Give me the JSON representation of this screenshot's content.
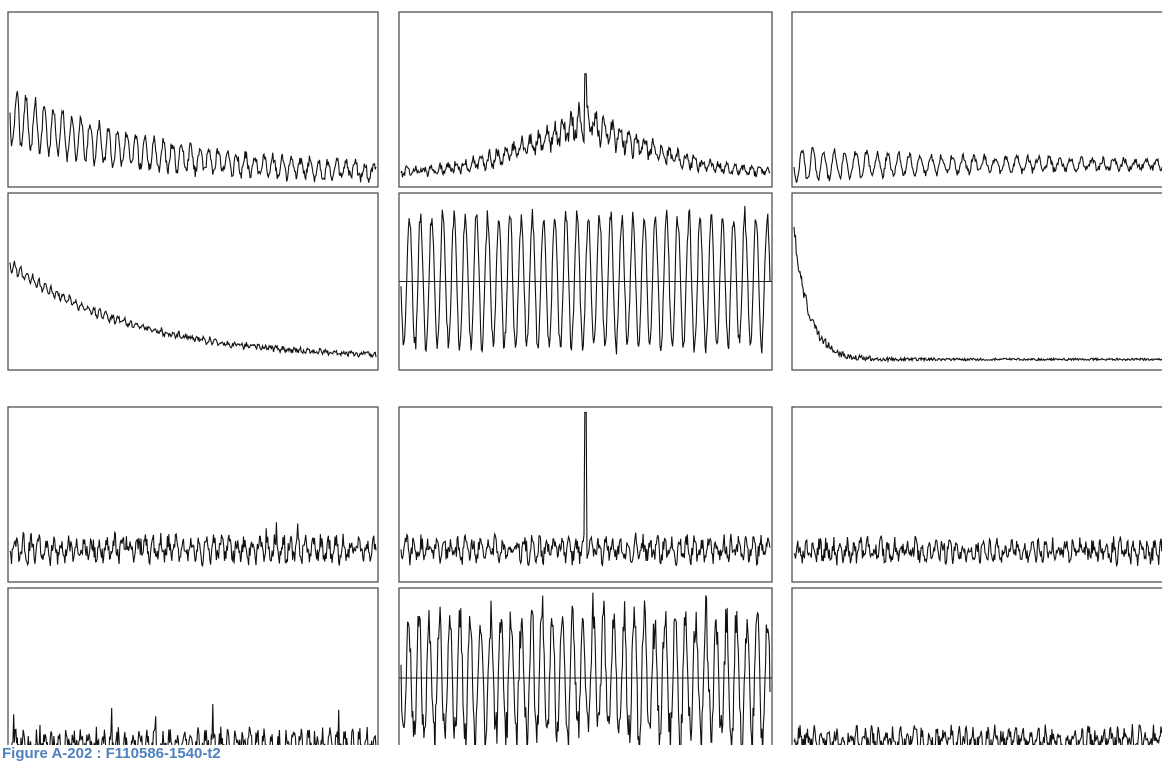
{
  "figure": {
    "caption": "Figure A-202 : F110586-1540-t2"
  }
}
